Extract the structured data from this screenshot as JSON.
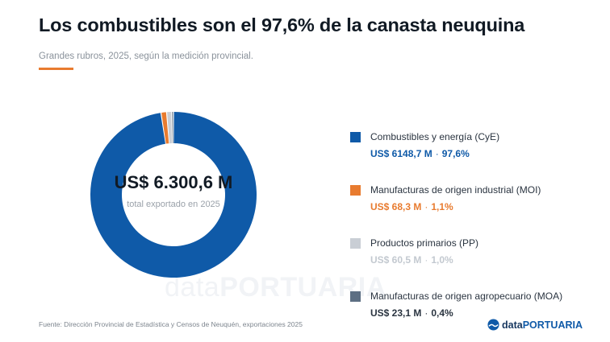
{
  "header": {
    "title": "Los combustibles son el 97,6% de la canasta neuquina",
    "subtitle": "Grandes rubros, 2025, según la medición provincial."
  },
  "watermark": {
    "part1": "data",
    "part2": "PORTUARIA"
  },
  "center": {
    "value": "US$ 6.300,6 M",
    "caption": "total exportado en 2025"
  },
  "chart_data": {
    "type": "pie",
    "title": "Los combustibles son el 97,6% de la canasta neuquina",
    "total": 6300.6,
    "unit": "US$ M",
    "series": [
      {
        "name": "Combustibles y energía (CyE)",
        "value_label": "US$ 6148,7 M",
        "value": 6148.7,
        "share_label": "97,6%",
        "share": 97.6,
        "color": "#0f5aa8"
      },
      {
        "name": "Manufacturas de origen industrial (MOI)",
        "value_label": "US$ 68,3 M",
        "value": 68.3,
        "share_label": "1,1%",
        "share": 1.1,
        "color": "#e87b2f"
      },
      {
        "name": "Productos primarios (PP)",
        "value_label": "US$ 60,5 M",
        "value": 60.5,
        "share_label": "1,0%",
        "share": 1.0,
        "color": "#c9ced5"
      },
      {
        "name": "Manufacturas de origen agropecuario (MOA)",
        "value_label": "US$ 23,1 M",
        "value": 23.1,
        "share_label": "0,4%",
        "share": 0.4,
        "color": "#5d6f83"
      }
    ],
    "legend": "right"
  },
  "legend_value_colors": [
    "#0f5aa8",
    "#e87b2f",
    "#c3c9d0",
    "#2a3440"
  ],
  "footer": {
    "source": "Fuente: Dirección Provincial de Estadística y Censos de Neuquén, exportaciones 2025",
    "brand_part1": "data",
    "brand_part2": "PORTUARIA",
    "brand_icon": "wave-icon"
  }
}
